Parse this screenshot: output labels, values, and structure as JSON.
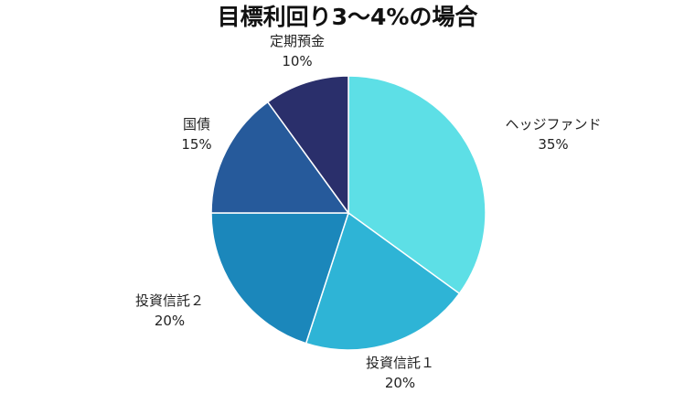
{
  "chart_data": {
    "type": "pie",
    "title": "目標利回り3～4%の場合",
    "slices": [
      {
        "label": "ヘッジファンド",
        "value": 35,
        "value_label": "35%",
        "color": "#5ddfe6"
      },
      {
        "label": "投資信託１",
        "value": 20,
        "value_label": "20%",
        "color": "#2eb4d6"
      },
      {
        "label": "投資信託２",
        "value": 20,
        "value_label": "20%",
        "color": "#1b87bb"
      },
      {
        "label": "国債",
        "value": 15,
        "value_label": "15%",
        "color": "#265a9b"
      },
      {
        "label": "定期預金",
        "value": 10,
        "value_label": "10%",
        "color": "#2a2f6b"
      }
    ],
    "start": "12 o'clock",
    "direction": "clockwise",
    "legend": "none"
  }
}
